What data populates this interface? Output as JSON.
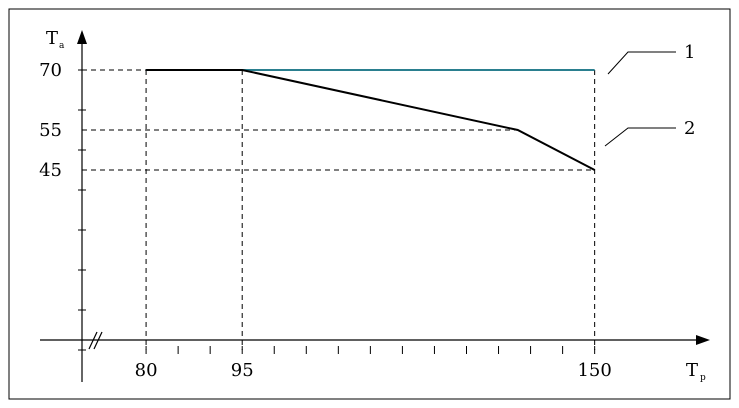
{
  "chart_data": {
    "type": "line",
    "x_axis": {
      "symbol": "T",
      "subscript": "p",
      "ticks": [
        "80",
        "95",
        "150"
      ],
      "xlim": [
        70,
        168
      ]
    },
    "y_axis": {
      "symbol": "T",
      "subscript": "a",
      "ticks": [
        "70",
        "55",
        "45"
      ],
      "ylim": [
        -8,
        80
      ]
    },
    "series": [
      {
        "name": "1",
        "color": "#2a7f8f",
        "points": [
          [
            80,
            70
          ],
          [
            150,
            70
          ]
        ]
      },
      {
        "name": "2",
        "color": "#000000",
        "points": [
          [
            80,
            70
          ],
          [
            95,
            70
          ],
          [
            138,
            55
          ],
          [
            150,
            45
          ]
        ]
      }
    ],
    "guide_lines": {
      "vertical_x": [
        80,
        95,
        150
      ],
      "horizontal_y": [
        70,
        55,
        45
      ]
    },
    "annotations": [
      {
        "text": "1",
        "series": "1"
      },
      {
        "text": "2",
        "series": "2"
      }
    ]
  }
}
